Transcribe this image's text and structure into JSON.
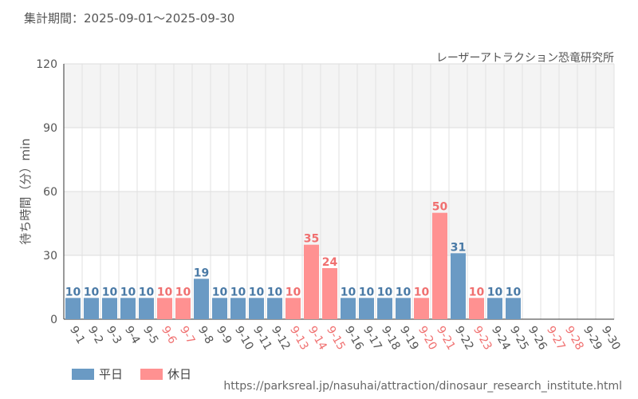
{
  "header": {
    "period_label": "集計期間：2025-09-01～2025-09-30",
    "facility": "レーザーアトラクション恐竜研究所"
  },
  "footer": {
    "source_url": "https://parksreal.jp/nasuhai/attraction/dinosaur_research_institute.html"
  },
  "colors": {
    "weekday": "#6a9ac4",
    "holiday": "#ff9191",
    "weekday_label": "#4a7aa6",
    "holiday_label": "#f07070"
  },
  "chart_data": {
    "type": "bar",
    "title": "",
    "xlabel": "",
    "ylabel": "待ち時間（分）min",
    "ylim": [
      0,
      120
    ],
    "yticks": [
      0,
      30,
      60,
      90,
      120
    ],
    "grid": true,
    "legend_position": "bottom-left",
    "legend": [
      {
        "name": "平日",
        "kind": "weekday"
      },
      {
        "name": "休日",
        "kind": "holiday"
      }
    ],
    "categories": [
      "9-1",
      "9-2",
      "9-3",
      "9-4",
      "9-5",
      "9-6",
      "9-7",
      "9-8",
      "9-9",
      "9-10",
      "9-11",
      "9-12",
      "9-13",
      "9-14",
      "9-15",
      "9-16",
      "9-17",
      "9-18",
      "9-19",
      "9-20",
      "9-21",
      "9-22",
      "9-23",
      "9-24",
      "9-25",
      "9-26",
      "9-27",
      "9-28",
      "9-29",
      "9-30"
    ],
    "values": [
      10,
      10,
      10,
      10,
      10,
      10,
      10,
      19,
      10,
      10,
      10,
      10,
      10,
      35,
      24,
      10,
      10,
      10,
      10,
      10,
      50,
      31,
      10,
      10,
      10,
      null,
      null,
      null,
      null,
      null
    ],
    "day_type": [
      "weekday",
      "weekday",
      "weekday",
      "weekday",
      "weekday",
      "holiday",
      "holiday",
      "weekday",
      "weekday",
      "weekday",
      "weekday",
      "weekday",
      "holiday",
      "holiday",
      "holiday",
      "weekday",
      "weekday",
      "weekday",
      "weekday",
      "holiday",
      "holiday",
      "weekday",
      "holiday",
      "weekday",
      "weekday",
      "weekday",
      "holiday",
      "holiday",
      "weekday",
      "weekday"
    ]
  }
}
